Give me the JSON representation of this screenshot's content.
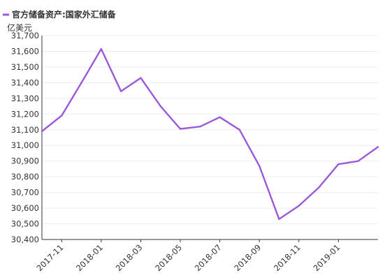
{
  "chart_data": {
    "type": "line",
    "legend": "官方储备资产:国家外汇储备",
    "legend_position": "top-left",
    "unit_label": "亿美元",
    "grid": true,
    "ylim": [
      30400,
      31700
    ],
    "yticks": [
      30400,
      30500,
      30600,
      30700,
      30800,
      30900,
      31000,
      31100,
      31200,
      31300,
      31400,
      31500,
      31600,
      31700
    ],
    "ytick_labels": [
      "30,400",
      "30,500",
      "30,600",
      "30,700",
      "30,800",
      "30,900",
      "31,000",
      "31,100",
      "31,200",
      "31,300",
      "31,400",
      "31,500",
      "31,600",
      "31,700"
    ],
    "xtick_labels": [
      "2017-11",
      "2018-01",
      "2018-03",
      "2018-05",
      "2018-07",
      "2018-09",
      "2018-11",
      "2019-01"
    ],
    "color": "#9b59d9",
    "series": [
      {
        "name": "官方储备资产:国家外汇储备",
        "x": [
          "2017-10",
          "2017-11",
          "2017-12",
          "2018-01",
          "2018-02",
          "2018-03",
          "2018-04",
          "2018-05",
          "2018-06",
          "2018-07",
          "2018-08",
          "2018-09",
          "2018-10",
          "2018-11",
          "2018-12",
          "2019-01",
          "2019-02",
          "2019-03"
        ],
        "values": [
          31090,
          31190,
          31400,
          31615,
          31345,
          31430,
          31250,
          31105,
          31120,
          31180,
          31100,
          30870,
          30530,
          30615,
          30730,
          30880,
          30900,
          30990
        ]
      }
    ]
  }
}
